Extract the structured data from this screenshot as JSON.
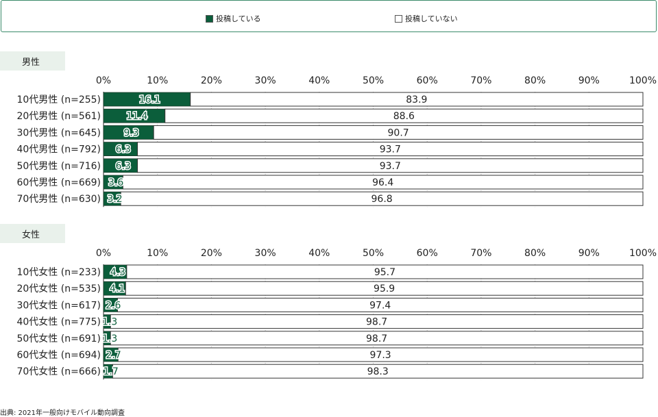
{
  "legend": [
    {
      "label": "投稿している",
      "color": "#0b5e3b"
    },
    {
      "label": "投稿していない",
      "color": "#ffffff"
    }
  ],
  "source": "出典: 2021年一般向けモバイル動向調査",
  "chart_data": [
    {
      "type": "bar",
      "orientation": "horizontal",
      "stacked": true,
      "section_label": "男性",
      "categories": [
        "10代男性 (n=255)",
        "20代男性 (n=561)",
        "30代男性 (n=645)",
        "40代男性 (n=792)",
        "50代男性 (n=716)",
        "60代男性 (n=669)",
        "70代男性 (n=630)"
      ],
      "series": [
        {
          "name": "投稿している",
          "values": [
            16.1,
            11.4,
            9.3,
            6.3,
            6.3,
            3.6,
            3.2
          ]
        },
        {
          "name": "投稿していない",
          "values": [
            83.9,
            88.6,
            90.7,
            93.7,
            93.7,
            96.4,
            96.8
          ]
        }
      ],
      "xlim": [
        0,
        100
      ],
      "ticks": [
        "0%",
        "10%",
        "20%",
        "30%",
        "40%",
        "50%",
        "60%",
        "70%",
        "80%",
        "90%",
        "100%"
      ],
      "grid": true
    },
    {
      "type": "bar",
      "orientation": "horizontal",
      "stacked": true,
      "section_label": "女性",
      "categories": [
        "10代女性 (n=233)",
        "20代女性 (n=535)",
        "30代女性 (n=617)",
        "40代女性 (n=775)",
        "50代女性 (n=691)",
        "60代女性 (n=694)",
        "70代女性 (n=666)"
      ],
      "series": [
        {
          "name": "投稿している",
          "values": [
            4.3,
            4.1,
            2.6,
            1.3,
            1.3,
            2.7,
            1.7
          ]
        },
        {
          "name": "投稿していない",
          "values": [
            95.7,
            95.9,
            97.4,
            98.7,
            98.7,
            97.3,
            98.3
          ]
        }
      ],
      "xlim": [
        0,
        100
      ],
      "ticks": [
        "0%",
        "10%",
        "20%",
        "30%",
        "40%",
        "50%",
        "60%",
        "70%",
        "80%",
        "90%",
        "100%"
      ],
      "grid": true
    }
  ]
}
